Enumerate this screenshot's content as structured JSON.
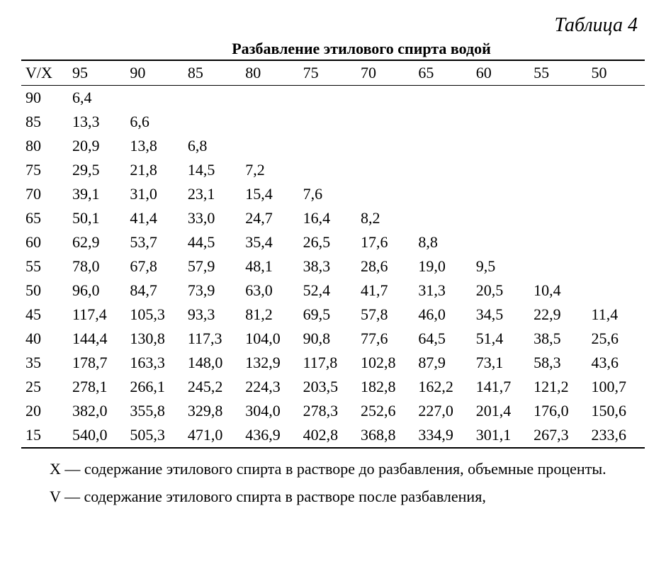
{
  "table_label": "Таблица 4",
  "table_title": "Разбавление этилового спирта водой",
  "header_first": "V/X",
  "columns": [
    "95",
    "90",
    "85",
    "80",
    "75",
    "70",
    "65",
    "60",
    "55",
    "50"
  ],
  "rows": [
    {
      "label": "90",
      "cells": [
        "6,4",
        "",
        "",
        "",
        "",
        "",
        "",
        "",
        "",
        ""
      ]
    },
    {
      "label": "85",
      "cells": [
        "13,3",
        "6,6",
        "",
        "",
        "",
        "",
        "",
        "",
        "",
        ""
      ]
    },
    {
      "label": "80",
      "cells": [
        "20,9",
        "13,8",
        "6,8",
        "",
        "",
        "",
        "",
        "",
        "",
        ""
      ]
    },
    {
      "label": "75",
      "cells": [
        "29,5",
        "21,8",
        "14,5",
        "7,2",
        "",
        "",
        "",
        "",
        "",
        ""
      ]
    },
    {
      "label": "70",
      "cells": [
        "39,1",
        "31,0",
        "23,1",
        "15,4",
        "7,6",
        "",
        "",
        "",
        "",
        ""
      ]
    },
    {
      "label": "65",
      "cells": [
        "50,1",
        "41,4",
        "33,0",
        "24,7",
        "16,4",
        "8,2",
        "",
        "",
        "",
        ""
      ]
    },
    {
      "label": "60",
      "cells": [
        "62,9",
        "53,7",
        "44,5",
        "35,4",
        "26,5",
        "17,6",
        "8,8",
        "",
        "",
        ""
      ]
    },
    {
      "label": "55",
      "cells": [
        "78,0",
        "67,8",
        "57,9",
        "48,1",
        "38,3",
        "28,6",
        "19,0",
        "9,5",
        "",
        ""
      ]
    },
    {
      "label": "50",
      "cells": [
        "96,0",
        "84,7",
        "73,9",
        "63,0",
        "52,4",
        "41,7",
        "31,3",
        "20,5",
        "10,4",
        ""
      ]
    },
    {
      "label": "45",
      "cells": [
        "117,4",
        "105,3",
        "93,3",
        "81,2",
        "69,5",
        "57,8",
        "46,0",
        "34,5",
        "22,9",
        "11,4"
      ]
    },
    {
      "label": "40",
      "cells": [
        "144,4",
        "130,8",
        "117,3",
        "104,0",
        "90,8",
        "77,6",
        "64,5",
        "51,4",
        "38,5",
        "25,6"
      ]
    },
    {
      "label": "35",
      "cells": [
        "178,7",
        "163,3",
        "148,0",
        "132,9",
        "117,8",
        "102,8",
        "87,9",
        "73,1",
        "58,3",
        "43,6"
      ]
    },
    {
      "label": "25",
      "cells": [
        "278,1",
        "266,1",
        "245,2",
        "224,3",
        "203,5",
        "182,8",
        "162,2",
        "141,7",
        "121,2",
        "100,7"
      ]
    },
    {
      "label": "20",
      "cells": [
        "382,0",
        "355,8",
        "329,8",
        "304,0",
        "278,3",
        "252,6",
        "227,0",
        "201,4",
        "176,0",
        "150,6"
      ]
    },
    {
      "label": "15",
      "cells": [
        "540,0",
        "505,3",
        "471,0",
        "436,9",
        "402,8",
        "368,8",
        "334,9",
        "301,1",
        "267,3",
        "233,6"
      ]
    }
  ],
  "legend_x": "X — содержание этилового спирта в растворе до разбавления, объемные проценты.",
  "legend_v": "V — содержание этилового спирта в растворе после разбавления,",
  "style": {
    "font_family": "Times New Roman",
    "background_color": "#ffffff",
    "text_color": "#000000",
    "table_label_fontsize": 28,
    "table_title_fontsize": 22,
    "cell_fontsize": 22,
    "legend_fontsize": 22,
    "border_color": "#000000",
    "border_width_outer": 2,
    "border_width_inner": 1.5
  }
}
